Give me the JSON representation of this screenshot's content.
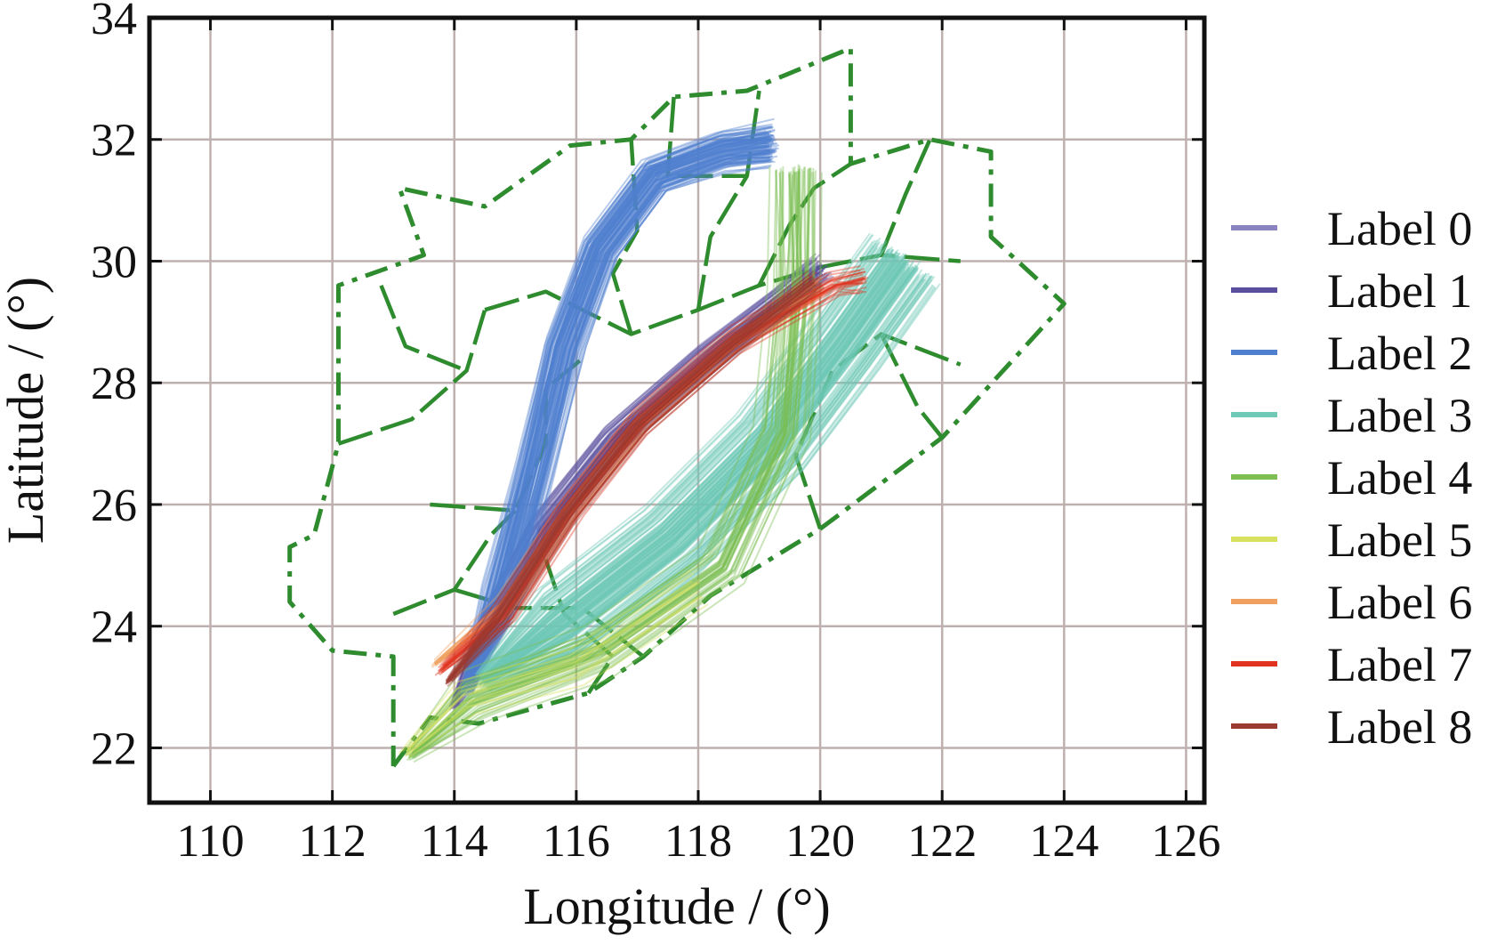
{
  "chart_data": {
    "type": "line",
    "xlabel": "Longitude / (°)",
    "ylabel": "Latitude / (°)",
    "xlim": [
      109,
      126.3
    ],
    "ylim": [
      21.1,
      34
    ],
    "xticks": [
      110,
      112,
      114,
      116,
      118,
      120,
      122,
      124,
      126
    ],
    "yticks": [
      22,
      24,
      26,
      28,
      30,
      32,
      34
    ],
    "grid": true,
    "legend_position": "right",
    "boundaries": {
      "color": "#2e8b2e",
      "outer": [
        [
          113.0,
          21.7
        ],
        [
          113.6,
          22.5
        ],
        [
          114.4,
          22.4
        ],
        [
          116.2,
          22.9
        ],
        [
          117.1,
          23.5
        ],
        [
          118.2,
          24.5
        ],
        [
          120.0,
          25.6
        ],
        [
          122.0,
          27.1
        ],
        [
          124.0,
          29.3
        ],
        [
          122.8,
          30.4
        ],
        [
          122.8,
          31.8
        ],
        [
          121.8,
          32.0
        ],
        [
          120.5,
          31.6
        ],
        [
          120.5,
          33.5
        ],
        [
          118.8,
          32.8
        ],
        [
          117.6,
          32.7
        ],
        [
          116.9,
          32.0
        ],
        [
          115.9,
          31.9
        ],
        [
          114.5,
          30.9
        ],
        [
          113.1,
          31.2
        ],
        [
          113.5,
          30.1
        ],
        [
          112.1,
          29.6
        ],
        [
          112.1,
          27.0
        ],
        [
          111.7,
          25.5
        ],
        [
          111.3,
          25.3
        ],
        [
          111.3,
          24.4
        ],
        [
          112.0,
          23.6
        ],
        [
          113.0,
          23.5
        ],
        [
          113.0,
          21.7
        ]
      ],
      "inner": [
        [
          [
            114.5,
            29.2
          ],
          [
            115.5,
            29.5
          ],
          [
            116.9,
            28.8
          ],
          [
            118.0,
            29.2
          ],
          [
            119.0,
            29.6
          ],
          [
            120.0,
            29.9
          ],
          [
            121.0,
            30.1
          ],
          [
            122.3,
            30.0
          ]
        ],
        [
          [
            112.1,
            27.0
          ],
          [
            113.3,
            27.4
          ],
          [
            114.2,
            28.2
          ],
          [
            114.5,
            29.2
          ]
        ],
        [
          [
            113.6,
            26.0
          ],
          [
            115.0,
            25.9
          ],
          [
            115.5,
            27.0
          ],
          [
            115.5,
            27.9
          ],
          [
            116.1,
            28.4
          ]
        ],
        [
          [
            113.0,
            24.2
          ],
          [
            114.0,
            24.6
          ],
          [
            114.6,
            25.5
          ],
          [
            115.0,
            25.9
          ]
        ],
        [
          [
            114.0,
            24.6
          ],
          [
            115.0,
            24.3
          ],
          [
            116.1,
            24.3
          ],
          [
            117.1,
            23.5
          ]
        ],
        [
          [
            116.9,
            28.8
          ],
          [
            116.6,
            29.8
          ],
          [
            117.0,
            30.5
          ],
          [
            116.9,
            32.0
          ]
        ],
        [
          [
            118.0,
            29.2
          ],
          [
            118.2,
            30.4
          ],
          [
            118.8,
            31.4
          ],
          [
            119.0,
            32.8
          ]
        ],
        [
          [
            119.0,
            29.6
          ],
          [
            119.5,
            30.6
          ],
          [
            119.9,
            31.2
          ],
          [
            120.5,
            31.6
          ]
        ],
        [
          [
            120.0,
            25.6
          ],
          [
            119.6,
            26.8
          ],
          [
            120.2,
            28.2
          ],
          [
            121.0,
            28.8
          ],
          [
            122.3,
            28.3
          ]
        ],
        [
          [
            121.0,
            28.8
          ],
          [
            121.6,
            27.6
          ],
          [
            122.0,
            27.1
          ]
        ],
        [
          [
            116.2,
            22.9
          ],
          [
            116.6,
            23.5
          ],
          [
            115.8,
            24.2
          ],
          [
            115.5,
            25.1
          ]
        ],
        [
          [
            117.6,
            32.7
          ],
          [
            117.5,
            31.4
          ],
          [
            118.8,
            31.4
          ]
        ],
        [
          [
            121.0,
            30.1
          ],
          [
            121.4,
            31.1
          ],
          [
            121.8,
            32.0
          ]
        ],
        [
          [
            112.8,
            29.6
          ],
          [
            113.2,
            28.6
          ],
          [
            114.2,
            28.2
          ]
        ]
      ]
    },
    "series": [
      {
        "name": "Label 0",
        "color": "#8a84c0",
        "density": 10,
        "spread": 0.25,
        "path": [
          [
            114.0,
            22.7
          ],
          [
            114.5,
            23.9
          ],
          [
            115.3,
            25.3
          ],
          [
            116.5,
            26.9
          ],
          [
            118.0,
            28.3
          ],
          [
            119.5,
            29.4
          ],
          [
            120.0,
            29.8
          ]
        ]
      },
      {
        "name": "Label 1",
        "color": "#5a4f9e",
        "density": 50,
        "spread": 0.35,
        "path": [
          [
            114.0,
            22.7
          ],
          [
            114.6,
            24.0
          ],
          [
            115.4,
            25.6
          ],
          [
            116.6,
            27.1
          ],
          [
            118.1,
            28.4
          ],
          [
            119.4,
            29.4
          ],
          [
            120.0,
            29.9
          ]
        ]
      },
      {
        "name": "Label 2",
        "color": "#4f7fcf",
        "density": 110,
        "spread": 0.45,
        "path": [
          [
            114.2,
            22.9
          ],
          [
            114.8,
            24.6
          ],
          [
            115.3,
            26.5
          ],
          [
            115.8,
            28.6
          ],
          [
            116.4,
            30.2
          ],
          [
            117.3,
            31.4
          ],
          [
            118.4,
            31.8
          ],
          [
            119.2,
            31.9
          ]
        ]
      },
      {
        "name": "Label 3",
        "color": "#6fc9b7",
        "density": 150,
        "spread": 0.95,
        "path": [
          [
            114.5,
            23.1
          ],
          [
            115.8,
            24.0
          ],
          [
            117.6,
            25.4
          ],
          [
            119.2,
            27.0
          ],
          [
            120.4,
            28.6
          ],
          [
            121.4,
            30.0
          ]
        ]
      },
      {
        "name": "Label 4",
        "color": "#7bbf52",
        "density": 45,
        "spread": 0.7,
        "path": [
          [
            113.3,
            21.9
          ],
          [
            114.3,
            22.8
          ],
          [
            116.4,
            23.6
          ],
          [
            118.4,
            25.0
          ],
          [
            119.4,
            27.2
          ],
          [
            119.6,
            29.5
          ],
          [
            119.6,
            31.5
          ]
        ]
      },
      {
        "name": "Label 5",
        "color": "#d8e060",
        "density": 12,
        "spread": 0.45,
        "path": [
          [
            113.2,
            21.9
          ],
          [
            114.2,
            22.8
          ],
          [
            116.0,
            23.3
          ],
          [
            118.0,
            24.6
          ]
        ]
      },
      {
        "name": "Label 6",
        "color": "#f0a060",
        "density": 20,
        "spread": 0.3,
        "path": [
          [
            113.7,
            23.4
          ],
          [
            114.8,
            24.3
          ],
          [
            115.8,
            25.8
          ],
          [
            117.0,
            27.3
          ],
          [
            118.5,
            28.6
          ],
          [
            120.0,
            29.6
          ]
        ]
      },
      {
        "name": "Label 7",
        "color": "#e13420",
        "density": 25,
        "spread": 0.3,
        "path": [
          [
            113.8,
            23.3
          ],
          [
            114.8,
            24.2
          ],
          [
            115.9,
            25.9
          ],
          [
            117.1,
            27.4
          ],
          [
            118.6,
            28.7
          ],
          [
            120.2,
            29.6
          ],
          [
            120.7,
            29.7
          ]
        ]
      },
      {
        "name": "Label 8",
        "color": "#9b3a30",
        "density": 30,
        "spread": 0.35,
        "path": [
          [
            113.9,
            23.1
          ],
          [
            114.7,
            24.1
          ],
          [
            115.8,
            25.8
          ],
          [
            117.0,
            27.3
          ],
          [
            118.5,
            28.6
          ],
          [
            119.9,
            29.7
          ]
        ]
      }
    ]
  }
}
